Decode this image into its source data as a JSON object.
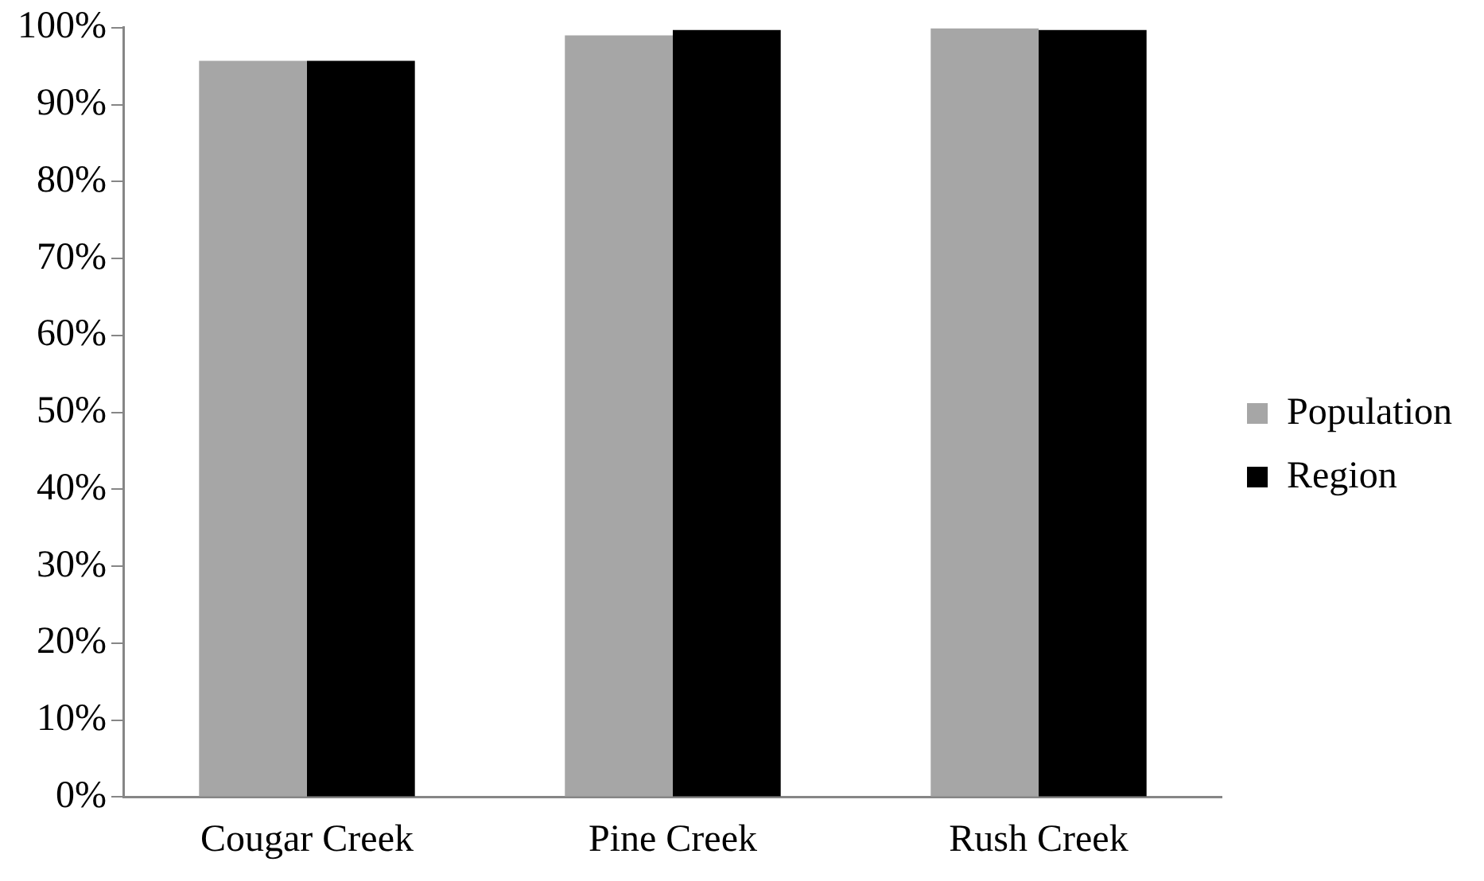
{
  "chart_data": {
    "type": "bar",
    "categories": [
      "Cougar Creek",
      "Pine Creek",
      "Rush Creek"
    ],
    "series": [
      {
        "name": "Population",
        "color": "#a6a6a6",
        "values": [
          95.7,
          99.0,
          99.9
        ]
      },
      {
        "name": "Region",
        "color": "#000000",
        "values": [
          95.7,
          99.7,
          99.7
        ]
      }
    ],
    "ylim": [
      0,
      100
    ],
    "yticks": [
      {
        "value": 0,
        "label": "0%"
      },
      {
        "value": 10,
        "label": "10%"
      },
      {
        "value": 20,
        "label": "20%"
      },
      {
        "value": 30,
        "label": "30%"
      },
      {
        "value": 40,
        "label": "40%"
      },
      {
        "value": 50,
        "label": "50%"
      },
      {
        "value": 60,
        "label": "60%"
      },
      {
        "value": 70,
        "label": "70%"
      },
      {
        "value": 80,
        "label": "80%"
      },
      {
        "value": 90,
        "label": "90%"
      },
      {
        "value": 100,
        "label": "100%"
      }
    ],
    "grid": false,
    "legend": "right"
  }
}
